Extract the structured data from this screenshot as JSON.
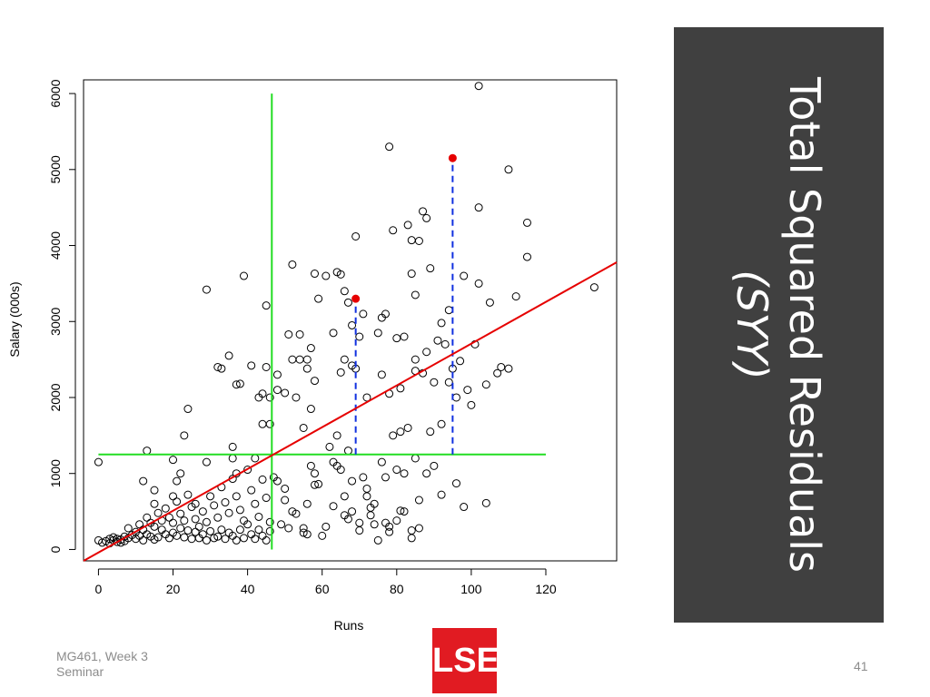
{
  "slide": {
    "title_main": "Total Squared Residuals",
    "title_sub": "(SYY)",
    "footer_line1": "MG461, Week 3",
    "footer_line2": "Seminar",
    "page_number": "41",
    "logo_text": "LSE"
  },
  "colors": {
    "title_panel": "#404040",
    "regression_line": "#e60000",
    "mean_lines": "#22dd22",
    "residual_dashes": "#1030e0",
    "highlight_points": "#e60000",
    "logo": "#e11b22"
  },
  "chart_data": {
    "type": "scatter",
    "xlabel": "Runs",
    "ylabel": "Salary (000s)",
    "x_ticks": [
      0,
      20,
      40,
      60,
      80,
      100,
      120
    ],
    "y_ticks": [
      0,
      1000,
      2000,
      3000,
      4000,
      5000,
      6000
    ],
    "xlim": [
      -4,
      139
    ],
    "ylim": [
      -150,
      6180
    ],
    "grid": false,
    "legend": "none",
    "points": [
      [
        0,
        1150
      ],
      [
        12,
        900
      ],
      [
        13,
        1300
      ],
      [
        15,
        780
      ],
      [
        15,
        600
      ],
      [
        20,
        1180
      ],
      [
        20,
        700
      ],
      [
        21,
        900
      ],
      [
        22,
        1000
      ],
      [
        23,
        1500
      ],
      [
        24,
        1850
      ],
      [
        26,
        600
      ],
      [
        29,
        1150
      ],
      [
        29,
        3420
      ],
      [
        32,
        2400
      ],
      [
        33,
        2380
      ],
      [
        35,
        2550
      ],
      [
        36,
        1350
      ],
      [
        36,
        1200
      ],
      [
        37,
        2170
      ],
      [
        37,
        1000
      ],
      [
        38,
        2180
      ],
      [
        39,
        3600
      ],
      [
        41,
        2420
      ],
      [
        42,
        1200
      ],
      [
        43,
        2000
      ],
      [
        44,
        2050
      ],
      [
        44,
        1650
      ],
      [
        45,
        3210
      ],
      [
        45,
        2400
      ],
      [
        46,
        2000
      ],
      [
        46,
        1650
      ],
      [
        48,
        2300
      ],
      [
        48,
        2100
      ],
      [
        50,
        2060
      ],
      [
        51,
        2830
      ],
      [
        52,
        3750
      ],
      [
        52,
        2500
      ],
      [
        53,
        2000
      ],
      [
        54,
        2830
      ],
      [
        54,
        2500
      ],
      [
        55,
        1600
      ],
      [
        56,
        2500
      ],
      [
        56,
        2380
      ],
      [
        57,
        2650
      ],
      [
        57,
        1850
      ],
      [
        58,
        3630
      ],
      [
        58,
        2220
      ],
      [
        59,
        3300
      ],
      [
        61,
        3600
      ],
      [
        63,
        2850
      ],
      [
        64,
        3650
      ],
      [
        64,
        1500
      ],
      [
        65,
        3620
      ],
      [
        65,
        2330
      ],
      [
        66,
        3400
      ],
      [
        66,
        2500
      ],
      [
        67,
        3250
      ],
      [
        67,
        1300
      ],
      [
        68,
        2950
      ],
      [
        68,
        2420
      ],
      [
        69,
        4120
      ],
      [
        69,
        2380
      ],
      [
        70,
        2800
      ],
      [
        71,
        3100
      ],
      [
        72,
        2000
      ],
      [
        75,
        2850
      ],
      [
        76,
        2300
      ],
      [
        76,
        3050
      ],
      [
        77,
        3100
      ],
      [
        78,
        5300
      ],
      [
        78,
        2050
      ],
      [
        79,
        4200
      ],
      [
        80,
        2780
      ],
      [
        81,
        2120
      ],
      [
        82,
        2800
      ],
      [
        83,
        4270
      ],
      [
        84,
        4070
      ],
      [
        84,
        3630
      ],
      [
        85,
        3350
      ],
      [
        85,
        2500
      ],
      [
        85,
        2350
      ],
      [
        86,
        4060
      ],
      [
        87,
        2320
      ],
      [
        87,
        4450
      ],
      [
        88,
        4360
      ],
      [
        89,
        3700
      ],
      [
        91,
        2750
      ],
      [
        92,
        2980
      ],
      [
        92,
        1650
      ],
      [
        93,
        2700
      ],
      [
        94,
        3150
      ],
      [
        94,
        2200
      ],
      [
        96,
        2000
      ],
      [
        98,
        3600
      ],
      [
        99,
        2100
      ],
      [
        101,
        2700
      ],
      [
        102,
        6100
      ],
      [
        102,
        4500
      ],
      [
        102,
        3500
      ],
      [
        104,
        2170
      ],
      [
        105,
        3250
      ],
      [
        107,
        2320
      ],
      [
        108,
        2400
      ],
      [
        110,
        5000
      ],
      [
        110,
        2380
      ],
      [
        112,
        3330
      ],
      [
        115,
        4300
      ],
      [
        115,
        3850
      ],
      [
        133,
        3450
      ],
      [
        47,
        950
      ],
      [
        48,
        900
      ],
      [
        50,
        800
      ],
      [
        50,
        650
      ],
      [
        52,
        500
      ],
      [
        55,
        280
      ],
      [
        55,
        220
      ],
      [
        56,
        200
      ],
      [
        57,
        1100
      ],
      [
        58,
        1000
      ],
      [
        58,
        850
      ],
      [
        59,
        860
      ],
      [
        60,
        180
      ],
      [
        62,
        1350
      ],
      [
        63,
        1150
      ],
      [
        64,
        1100
      ],
      [
        65,
        1050
      ],
      [
        66,
        450
      ],
      [
        67,
        400
      ],
      [
        68,
        500
      ],
      [
        70,
        350
      ],
      [
        70,
        250
      ],
      [
        72,
        800
      ],
      [
        72,
        700
      ],
      [
        73,
        550
      ],
      [
        73,
        450
      ],
      [
        74,
        330
      ],
      [
        75,
        120
      ],
      [
        77,
        950
      ],
      [
        77,
        350
      ],
      [
        78,
        300
      ],
      [
        78,
        230
      ],
      [
        80,
        1050
      ],
      [
        80,
        380
      ],
      [
        81,
        510
      ],
      [
        82,
        500
      ],
      [
        82,
        1000
      ],
      [
        84,
        250
      ],
      [
        84,
        150
      ],
      [
        85,
        1200
      ],
      [
        86,
        280
      ],
      [
        88,
        1000
      ],
      [
        89,
        1550
      ],
      [
        90,
        1100
      ],
      [
        92,
        720
      ],
      [
        96,
        870
      ],
      [
        98,
        560
      ],
      [
        104,
        610
      ],
      [
        0,
        120
      ],
      [
        1,
        90
      ],
      [
        2,
        110
      ],
      [
        3,
        140
      ],
      [
        3,
        80
      ],
      [
        4,
        120
      ],
      [
        4,
        160
      ],
      [
        5,
        100
      ],
      [
        5,
        140
      ],
      [
        6,
        130
      ],
      [
        6,
        90
      ],
      [
        7,
        170
      ],
      [
        7,
        110
      ],
      [
        8,
        150
      ],
      [
        8,
        280
      ],
      [
        9,
        190
      ],
      [
        10,
        140
      ],
      [
        10,
        230
      ],
      [
        11,
        330
      ],
      [
        11,
        180
      ],
      [
        12,
        120
      ],
      [
        12,
        260
      ],
      [
        13,
        420
      ],
      [
        13,
        200
      ],
      [
        14,
        170
      ],
      [
        14,
        350
      ],
      [
        15,
        300
      ],
      [
        15,
        130
      ],
      [
        16,
        480
      ],
      [
        16,
        160
      ],
      [
        17,
        380
      ],
      [
        17,
        260
      ],
      [
        18,
        200
      ],
      [
        18,
        540
      ],
      [
        19,
        420
      ],
      [
        19,
        150
      ],
      [
        20,
        350
      ],
      [
        20,
        220
      ],
      [
        21,
        630
      ],
      [
        21,
        180
      ],
      [
        22,
        470
      ],
      [
        22,
        280
      ],
      [
        23,
        380
      ],
      [
        23,
        160
      ],
      [
        24,
        720
      ],
      [
        24,
        250
      ],
      [
        25,
        560
      ],
      [
        25,
        140
      ],
      [
        26,
        400
      ],
      [
        26,
        230
      ],
      [
        27,
        300
      ],
      [
        27,
        150
      ],
      [
        28,
        500
      ],
      [
        28,
        200
      ],
      [
        29,
        360
      ],
      [
        29,
        120
      ],
      [
        30,
        700
      ],
      [
        30,
        240
      ],
      [
        31,
        580
      ],
      [
        31,
        150
      ],
      [
        32,
        420
      ],
      [
        32,
        170
      ],
      [
        33,
        820
      ],
      [
        33,
        260
      ],
      [
        34,
        620
      ],
      [
        34,
        140
      ],
      [
        35,
        480
      ],
      [
        35,
        220
      ],
      [
        36,
        930
      ],
      [
        36,
        180
      ],
      [
        37,
        700
      ],
      [
        37,
        120
      ],
      [
        38,
        520
      ],
      [
        38,
        260
      ],
      [
        39,
        380
      ],
      [
        39,
        150
      ],
      [
        40,
        1050
      ],
      [
        40,
        330
      ],
      [
        41,
        780
      ],
      [
        41,
        200
      ],
      [
        42,
        600
      ],
      [
        42,
        140
      ],
      [
        43,
        430
      ],
      [
        43,
        260
      ],
      [
        44,
        920
      ],
      [
        44,
        180
      ],
      [
        45,
        680
      ],
      [
        45,
        120
      ],
      [
        46,
        360
      ],
      [
        46,
        240
      ],
      [
        49,
        330
      ],
      [
        51,
        280
      ],
      [
        53,
        470
      ],
      [
        56,
        600
      ],
      [
        61,
        300
      ],
      [
        63,
        570
      ],
      [
        66,
        700
      ],
      [
        68,
        900
      ],
      [
        71,
        950
      ],
      [
        74,
        600
      ],
      [
        76,
        1150
      ],
      [
        79,
        1500
      ],
      [
        81,
        1550
      ],
      [
        83,
        1600
      ],
      [
        86,
        650
      ],
      [
        88,
        2600
      ],
      [
        90,
        2200
      ],
      [
        95,
        2380
      ],
      [
        97,
        2480
      ],
      [
        100,
        1900
      ]
    ],
    "highlight_points": [
      {
        "x": 69,
        "y": 3300
      },
      {
        "x": 95,
        "y": 5150
      }
    ],
    "regression_line": {
      "x": [
        -4,
        139
      ],
      "y": [
        -150,
        3780
      ]
    },
    "mean_lines": {
      "x_mean": 46.5,
      "x_mean_y_range": [
        0,
        6000
      ],
      "y_mean": 1250,
      "y_mean_x_range": [
        0,
        120
      ]
    },
    "residual_segments": [
      {
        "x": 69,
        "y_from": 1250,
        "y_to": 3300
      },
      {
        "x": 95,
        "y_from": 1250,
        "y_to": 5150
      }
    ]
  }
}
